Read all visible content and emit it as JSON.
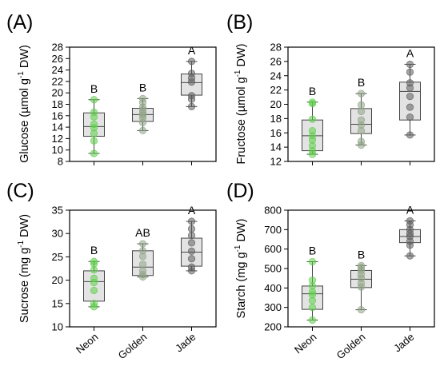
{
  "colors": {
    "Neon": "#5ecf4a",
    "Golden": "#8fa486",
    "Jade": "#5e5e5e",
    "box_fill": "#e3e3e3"
  },
  "chart_data": [
    {
      "type": "box",
      "panel": "(A)",
      "ylabel_main": "Glucose (µmol g",
      "ylabel_sup": "-1",
      "ylabel_end": " DW)",
      "ylim": [
        8,
        28
      ],
      "yticks": [
        8,
        10,
        12,
        14,
        16,
        18,
        20,
        22,
        24,
        26,
        28
      ],
      "categories": [
        "Neon",
        "Golden",
        "Jade"
      ],
      "show_xticklabels": false,
      "groups": [
        {
          "name": "Neon",
          "q1": 12.4,
          "median": 14.1,
          "q3": 16.5,
          "whisker_low": 9.4,
          "whisker_high": 18.8,
          "letter": "B",
          "points": [
            9.4,
            11.6,
            12.9,
            13.9,
            14.5,
            15.8,
            16.6,
            18.8
          ]
        },
        {
          "name": "Golden",
          "q1": 15.0,
          "median": 16.2,
          "q3": 17.3,
          "whisker_low": 13.4,
          "whisker_high": 19.0,
          "letter": "B",
          "points": [
            13.4,
            14.8,
            15.6,
            16.1,
            16.5,
            17.0,
            17.5,
            18.3,
            19.0
          ]
        },
        {
          "name": "Jade",
          "q1": 19.6,
          "median": 21.8,
          "q3": 23.3,
          "whisker_low": 17.6,
          "whisker_high": 25.5,
          "letter": "A",
          "points": [
            17.6,
            18.9,
            19.5,
            21.9,
            22.6,
            23.4,
            25.5
          ]
        }
      ]
    },
    {
      "type": "box",
      "panel": "(B)",
      "ylabel_main": "Fructose (µmol g",
      "ylabel_sup": "-1",
      "ylabel_end": " DW)",
      "ylim": [
        12,
        28
      ],
      "yticks": [
        12,
        14,
        16,
        18,
        20,
        22,
        24,
        26,
        28
      ],
      "categories": [
        "Neon",
        "Golden",
        "Jade"
      ],
      "show_xticklabels": false,
      "groups": [
        {
          "name": "Neon",
          "q1": 13.5,
          "median": 15.6,
          "q3": 17.8,
          "whisker_low": 13.0,
          "whisker_high": 20.3,
          "letter": "B",
          "points": [
            13.0,
            13.5,
            14.2,
            15.0,
            15.6,
            16.3,
            17.9,
            20.1,
            20.3
          ]
        },
        {
          "name": "Golden",
          "q1": 15.9,
          "median": 17.2,
          "q3": 19.4,
          "whisker_low": 14.3,
          "whisker_high": 21.5,
          "letter": "B",
          "points": [
            14.3,
            14.8,
            16.3,
            17.1,
            17.8,
            19.0,
            19.9,
            21.5
          ]
        },
        {
          "name": "Jade",
          "q1": 17.8,
          "median": 21.8,
          "q3": 23.1,
          "whisker_low": 15.7,
          "whisker_high": 25.6,
          "letter": "A",
          "points": [
            15.7,
            18.2,
            19.6,
            21.1,
            22.3,
            23.0,
            24.5,
            25.6
          ]
        }
      ]
    },
    {
      "type": "box",
      "panel": "(C)",
      "ylabel_main": "Sucrose (mg g",
      "ylabel_sup": "-1",
      "ylabel_end": " DW)",
      "ylim": [
        10,
        35
      ],
      "yticks": [
        10,
        15,
        20,
        25,
        30,
        35
      ],
      "categories": [
        "Neon",
        "Golden",
        "Jade"
      ],
      "show_xticklabels": true,
      "groups": [
        {
          "name": "Neon",
          "q1": 15.5,
          "median": 19.7,
          "q3": 22.0,
          "whisker_low": 14.3,
          "whisker_high": 24.0,
          "letter": "B",
          "points": [
            14.3,
            15.0,
            17.8,
            19.5,
            20.4,
            22.2,
            23.5,
            24.0
          ]
        },
        {
          "name": "Golden",
          "q1": 21.0,
          "median": 22.8,
          "q3": 26.3,
          "whisker_low": 20.7,
          "whisker_high": 27.8,
          "letter": "AB",
          "points": [
            20.7,
            21.2,
            22.0,
            23.4,
            25.1,
            26.3,
            27.8
          ]
        },
        {
          "name": "Jade",
          "q1": 23.0,
          "median": 26.0,
          "q3": 29.0,
          "whisker_low": 22.0,
          "whisker_high": 32.6,
          "letter": "A",
          "points": [
            22.0,
            22.8,
            24.6,
            26.2,
            28.0,
            29.6,
            31.0,
            32.6
          ]
        }
      ]
    },
    {
      "type": "box",
      "panel": "(D)",
      "ylabel_main": "Starch (mg g",
      "ylabel_sup": "-1",
      "ylabel_end": " DW)",
      "ylim": [
        200,
        800
      ],
      "yticks": [
        200,
        300,
        400,
        500,
        600,
        700,
        800
      ],
      "categories": [
        "Neon",
        "Golden",
        "Jade"
      ],
      "show_xticklabels": true,
      "groups": [
        {
          "name": "Neon",
          "q1": 290,
          "median": 370,
          "q3": 410,
          "whisker_low": 235,
          "whisker_high": 535,
          "letter": "B",
          "points": [
            235,
            300,
            335,
            365,
            380,
            410,
            440,
            535
          ]
        },
        {
          "name": "Golden",
          "q1": 402,
          "median": 445,
          "q3": 490,
          "whisker_low": 288,
          "whisker_high": 515,
          "letter": "B",
          "points": [
            288,
            405,
            425,
            450,
            470,
            490,
            505,
            515
          ]
        },
        {
          "name": "Jade",
          "q1": 633,
          "median": 665,
          "q3": 700,
          "whisker_low": 565,
          "whisker_high": 745,
          "letter": "A",
          "points": [
            565,
            620,
            640,
            665,
            680,
            700,
            725,
            745
          ]
        }
      ]
    }
  ]
}
